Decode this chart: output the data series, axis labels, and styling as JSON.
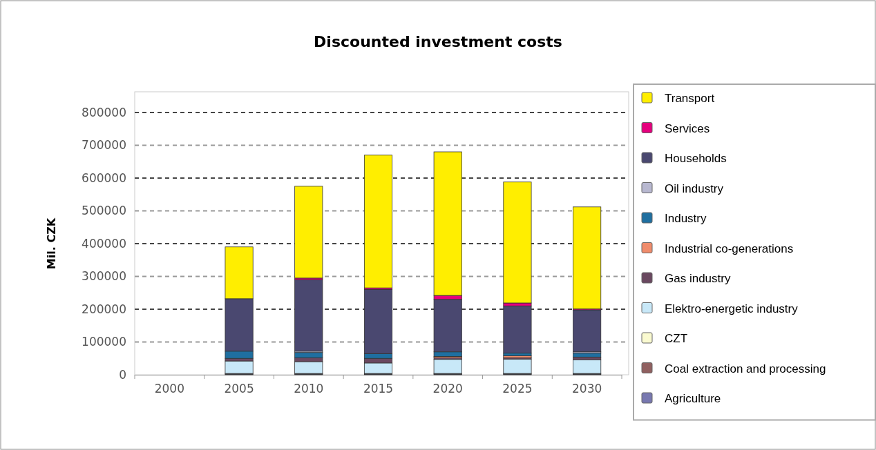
{
  "chart_data": {
    "type": "bar",
    "title": "Discounted investment costs",
    "ylabel": "Mil. CZK",
    "stacked": true,
    "grid": "y",
    "legend": "right",
    "categories": [
      "2000",
      "2005",
      "2010",
      "2015",
      "2020",
      "2025",
      "2030"
    ],
    "ylim": [
      0,
      800000
    ],
    "yticks": [
      0,
      100000,
      200000,
      300000,
      400000,
      500000,
      600000,
      700000,
      800000
    ],
    "series": [
      {
        "name": "Agriculture",
        "color": "#7878b0",
        "values": [
          null,
          2000,
          2000,
          2000,
          2000,
          2000,
          2000
        ]
      },
      {
        "name": "Coal extraction and processing",
        "color": "#906060",
        "values": [
          null,
          2000,
          2000,
          2000,
          2000,
          2000,
          2000
        ]
      },
      {
        "name": "CZT",
        "color": "#fafad0",
        "values": [
          null,
          0,
          0,
          0,
          0,
          0,
          0
        ]
      },
      {
        "name": "Elektro-energetic industry",
        "color": "#c8e8f8",
        "values": [
          null,
          38000,
          36000,
          32000,
          43000,
          44000,
          42000
        ]
      },
      {
        "name": "Gas industry",
        "color": "#6a4860",
        "values": [
          null,
          8000,
          12000,
          14000,
          5000,
          4000,
          8000
        ]
      },
      {
        "name": "Industrial co-generations",
        "color": "#f08c6c",
        "values": [
          null,
          0,
          0,
          0,
          4000,
          6000,
          0
        ]
      },
      {
        "name": "Industry",
        "color": "#1f6fa0",
        "values": [
          null,
          22000,
          16000,
          14000,
          14000,
          8000,
          12000
        ]
      },
      {
        "name": "Oil industry",
        "color": "#b8b8d0",
        "values": [
          null,
          null,
          4000,
          null,
          null,
          null,
          4000
        ]
      },
      {
        "name": "Households",
        "color": "#4a4870",
        "values": [
          null,
          160000,
          218000,
          196000,
          160000,
          144000,
          128000
        ]
      },
      {
        "name": "Services",
        "color": "#e6007e",
        "values": [
          null,
          null,
          5000,
          5000,
          12000,
          9000,
          3000
        ]
      },
      {
        "name": "Transport",
        "color": "#ffee00",
        "values": [
          null,
          158000,
          280000,
          405000,
          438000,
          369000,
          311000
        ]
      }
    ]
  }
}
